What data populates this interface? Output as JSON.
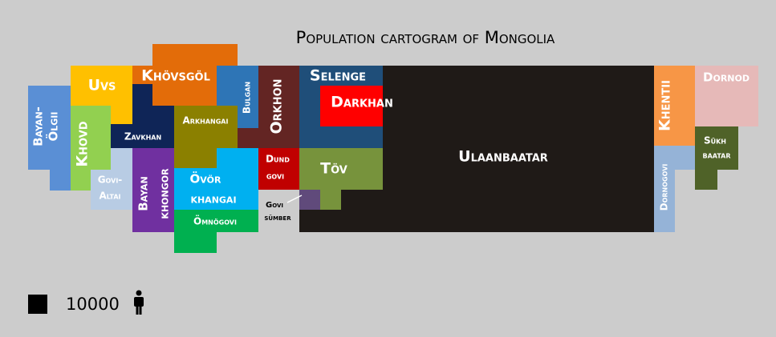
{
  "title": "Population cartogram of Mongolia",
  "regions": [
    {
      "lines": [
        "Bayan-",
        "Ölgii"
      ]
    },
    {
      "lines": [
        "Uvs"
      ]
    },
    {
      "lines": [
        "Khövsgöl"
      ]
    },
    {
      "lines": [
        "Khovd"
      ]
    },
    {
      "lines": [
        "Zavkhan"
      ]
    },
    {
      "lines": [
        "Govi-",
        "Altai"
      ]
    },
    {
      "lines": [
        "Bayan",
        "khongor"
      ]
    },
    {
      "lines": [
        "Arkhangai"
      ]
    },
    {
      "lines": [
        "Bulgan"
      ]
    },
    {
      "lines": [
        "Orkhon"
      ]
    },
    {
      "lines": [
        "Övör",
        "khangai"
      ]
    },
    {
      "lines": [
        "Ömnögovi"
      ]
    },
    {
      "lines": [
        "Dund",
        "govi"
      ]
    },
    {
      "lines": [
        "Govi",
        "sümber"
      ]
    },
    {
      "lines": [
        "Selenge"
      ]
    },
    {
      "lines": [
        "Darkhan"
      ]
    },
    {
      "lines": [
        "Töv"
      ]
    },
    {
      "lines": [
        "Ulaanbaatar"
      ]
    },
    {
      "lines": [
        "Khentii"
      ]
    },
    {
      "lines": [
        "Dornod"
      ]
    },
    {
      "lines": [
        "Dornogovi"
      ]
    },
    {
      "lines": [
        "Sükh",
        "baatar"
      ]
    }
  ],
  "legend": {
    "label": "10000"
  }
}
